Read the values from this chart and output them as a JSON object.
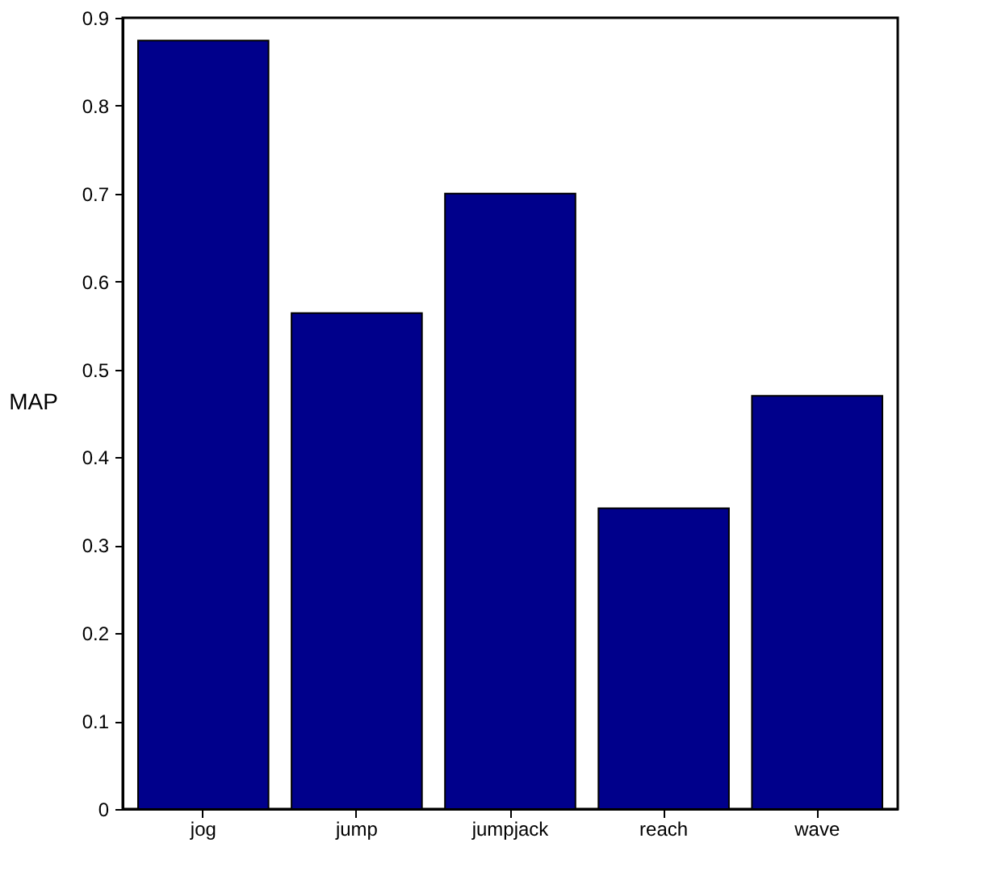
{
  "chart_data": {
    "type": "bar",
    "ylabel": "MAP",
    "categories": [
      "jog",
      "jump",
      "jumpjack",
      "reach",
      "wave"
    ],
    "values": [
      0.874,
      0.564,
      0.7,
      0.342,
      0.47
    ],
    "color": "#00008b",
    "ylim": [
      0,
      0.9
    ],
    "yticks": [
      0,
      0.1,
      0.2,
      0.3,
      0.4,
      0.5,
      0.6,
      0.7,
      0.8,
      0.9
    ],
    "grid": false
  }
}
